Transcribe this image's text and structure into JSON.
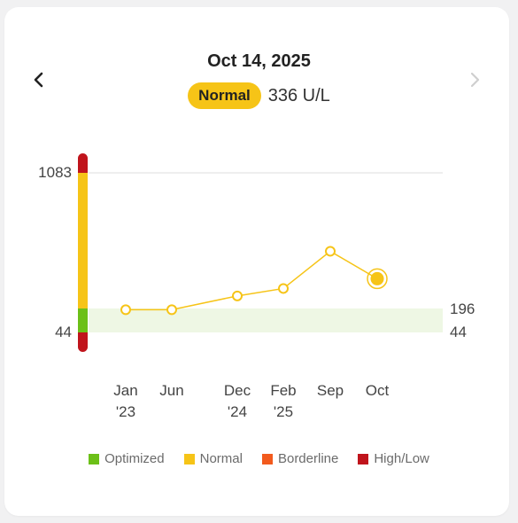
{
  "header": {
    "date": "Oct 14, 2025",
    "status_label": "Normal",
    "reading": "336 U/L",
    "prev_icon": "chevron-left-icon",
    "next_icon": "chevron-right-icon"
  },
  "chart_data": {
    "type": "line",
    "title": "",
    "x": [
      {
        "line1": "Jan",
        "line2": "'23"
      },
      {
        "line1": "Jun",
        "line2": ""
      },
      {
        "line1": "Dec",
        "line2": "'24"
      },
      {
        "line1": "Feb",
        "line2": "'25"
      },
      {
        "line1": "Sep",
        "line2": ""
      },
      {
        "line1": "Oct",
        "line2": ""
      }
    ],
    "series": [
      {
        "values": [
          188,
          188,
          255,
          290,
          465,
          336
        ]
      }
    ],
    "y_ticks": [
      "1083",
      "44"
    ],
    "reference_range": {
      "low": 44,
      "high": 196,
      "low_label": "44",
      "high_label": "196"
    },
    "line_color": "#f6c417",
    "range_bar_colors": {
      "high": "#c0141c",
      "normal": "#f6c417",
      "optimized": "#6cc018",
      "low": "#c0141c"
    },
    "band_color": "#eef7e4",
    "gridline": true,
    "legend_position": "bottom"
  },
  "legend": [
    {
      "label": "Optimized",
      "color": "#6cc018"
    },
    {
      "label": "Normal",
      "color": "#f6c417"
    },
    {
      "label": "Borderline",
      "color": "#f25a1d"
    },
    {
      "label": "High/Low",
      "color": "#c0141c"
    }
  ]
}
